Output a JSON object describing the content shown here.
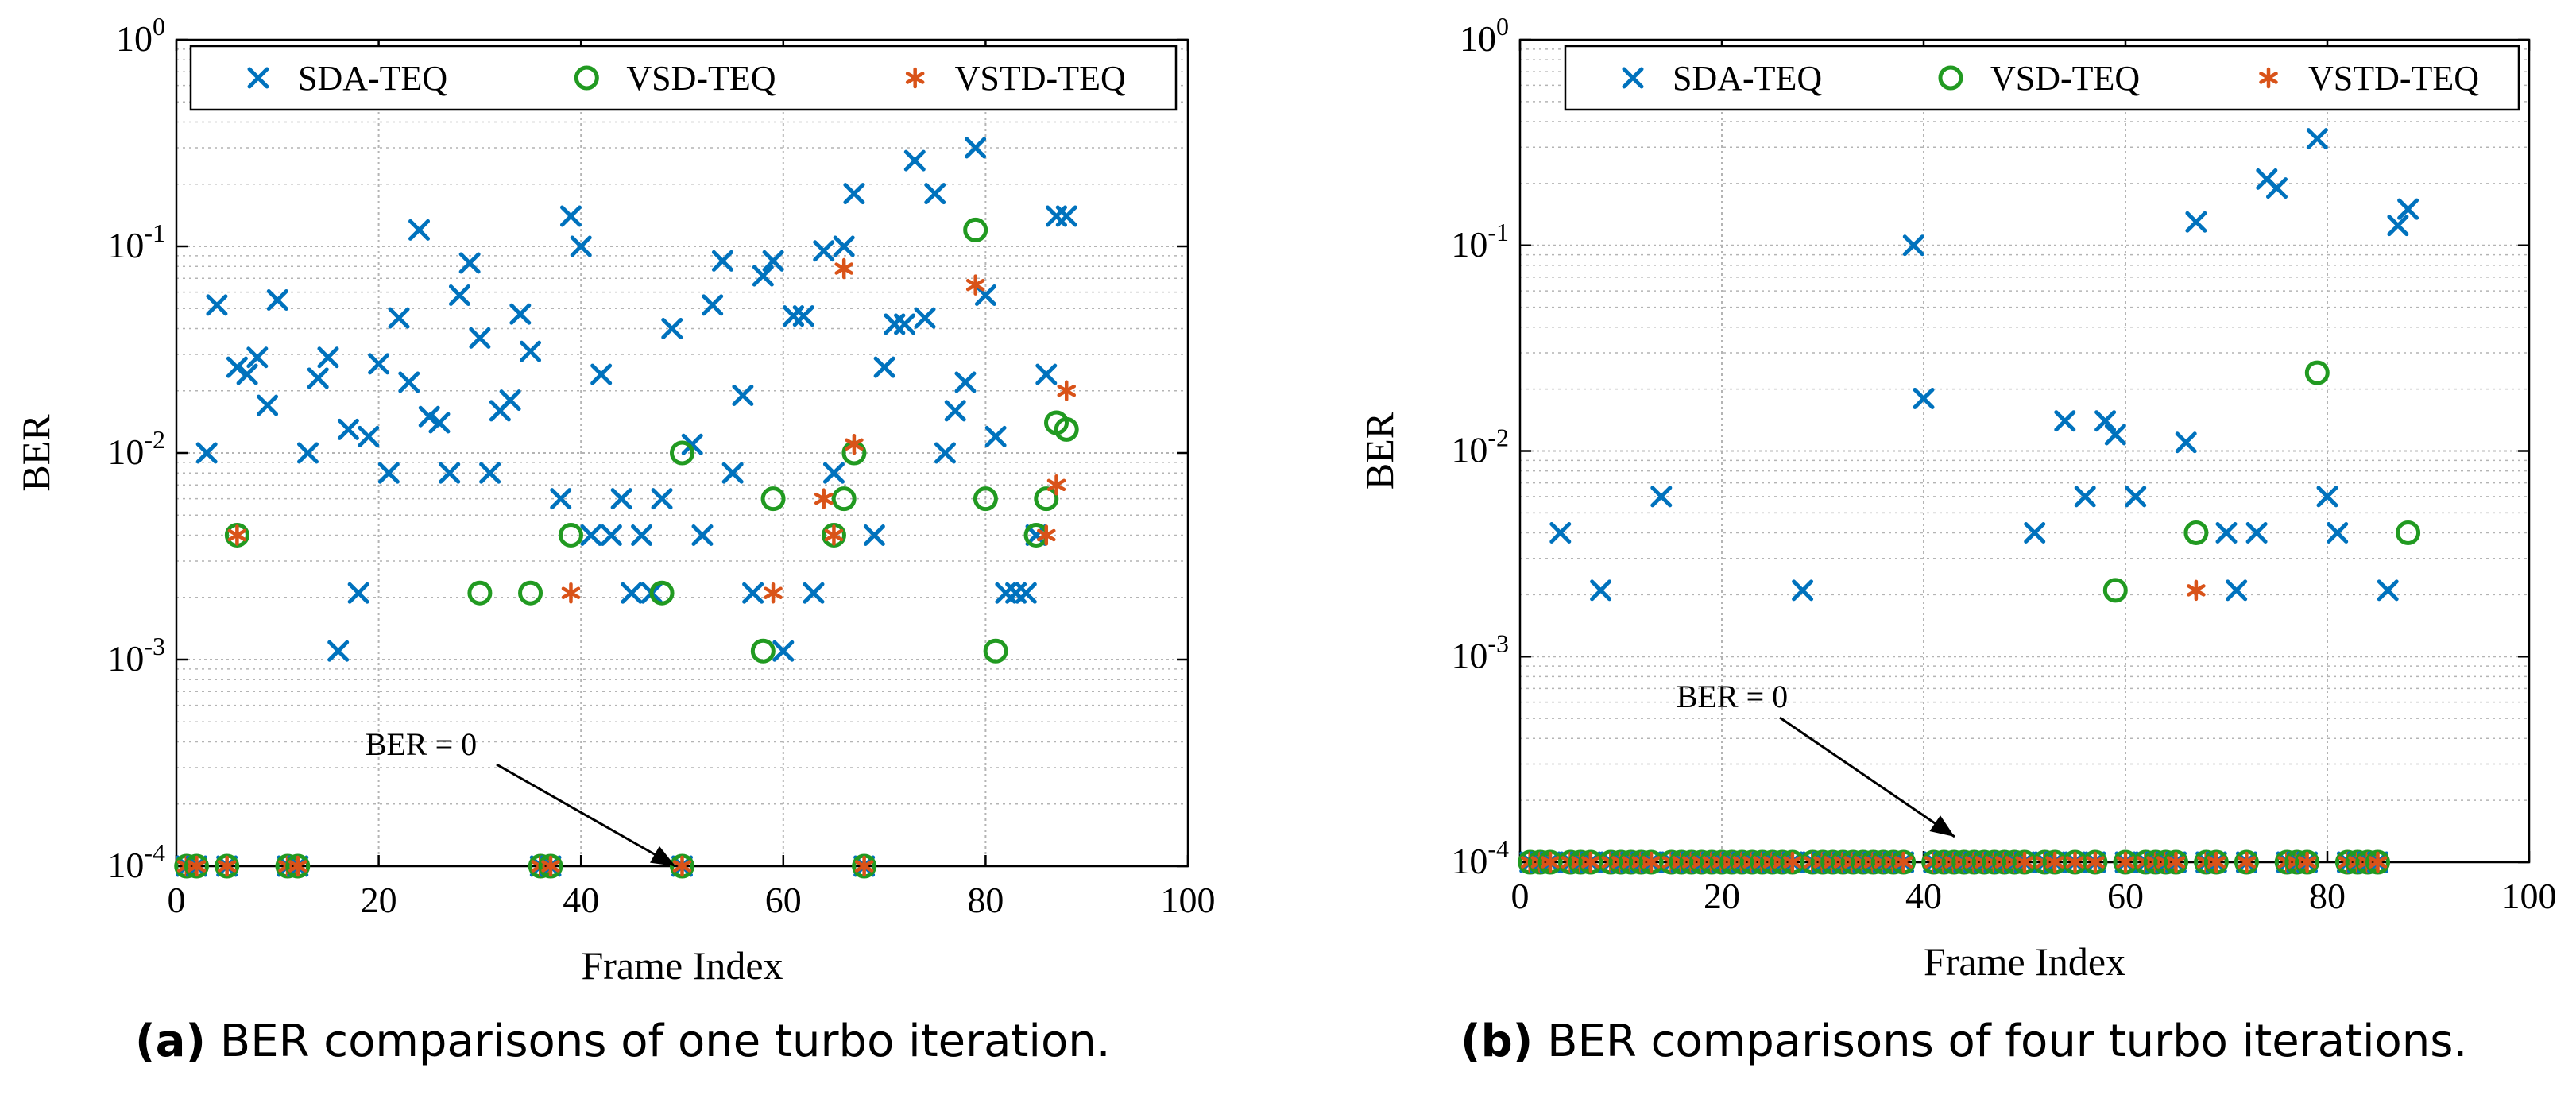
{
  "colors": {
    "sda": "#0072BD",
    "vsd": "#219A21",
    "vstd": "#D95319",
    "grid": "#b4b4b4"
  },
  "chart_data": [
    {
      "type": "scatter",
      "panel_label": "(a)",
      "caption": "BER comparisons of one turbo iteration.",
      "xlabel": "Frame Index",
      "ylabel": "BER",
      "xlim": [
        0,
        100
      ],
      "ylim": [
        0.0001,
        1
      ],
      "yscale": "log",
      "xticks": [
        "0",
        "20",
        "40",
        "60",
        "80",
        "100"
      ],
      "yticks": [
        {
          "base": "10",
          "exp": "-4"
        },
        {
          "base": "10",
          "exp": "-3"
        },
        {
          "base": "10",
          "exp": "-2"
        },
        {
          "base": "10",
          "exp": "-1"
        },
        {
          "base": "10",
          "exp": "0"
        }
      ],
      "grid": true,
      "legend": "top",
      "annotation": {
        "text": "BER = 0",
        "point_to": [
          50,
          0.0001
        ]
      },
      "series": [
        {
          "name": "SDA-TEQ",
          "marker": "x",
          "x": [
            3,
            4,
            6,
            7,
            8,
            9,
            10,
            13,
            14,
            15,
            16,
            17,
            18,
            19,
            20,
            21,
            22,
            23,
            24,
            25,
            26,
            27,
            28,
            29,
            30,
            31,
            32,
            33,
            34,
            35,
            38,
            39,
            40,
            41,
            42,
            43,
            44,
            45,
            46,
            47,
            48,
            49,
            51,
            52,
            53,
            54,
            55,
            56,
            57,
            58,
            59,
            60,
            61,
            62,
            63,
            64,
            65,
            66,
            67,
            69,
            70,
            71,
            72,
            73,
            74,
            75,
            76,
            77,
            78,
            79,
            80,
            81,
            82,
            83,
            84,
            85,
            86,
            87,
            88
          ],
          "y": [
            0.01,
            0.052,
            0.026,
            0.024,
            0.029,
            0.017,
            0.055,
            0.01,
            0.023,
            0.029,
            0.0011,
            0.013,
            0.0021,
            0.012,
            0.027,
            0.008,
            0.045,
            0.022,
            0.12,
            0.015,
            0.014,
            0.008,
            0.058,
            0.083,
            0.036,
            0.008,
            0.016,
            0.018,
            0.047,
            0.031,
            0.006,
            0.14,
            0.1,
            0.004,
            0.024,
            0.004,
            0.006,
            0.0021,
            0.004,
            0.0021,
            0.006,
            0.04,
            0.011,
            0.004,
            0.052,
            0.085,
            0.008,
            0.019,
            0.0021,
            0.072,
            0.085,
            0.0011,
            0.046,
            0.046,
            0.0021,
            0.095,
            0.008,
            0.1,
            0.18,
            0.004,
            0.026,
            0.042,
            0.042,
            0.26,
            0.045,
            0.18,
            0.01,
            0.016,
            0.022,
            0.3,
            0.058,
            0.012,
            0.0021,
            0.0021,
            0.0021,
            0.004,
            0.024,
            0.14,
            0.14
          ]
        },
        {
          "name": "VSD-TEQ",
          "marker": "o",
          "x": [
            6,
            30,
            35,
            39,
            48,
            50,
            58,
            59,
            65,
            66,
            67,
            79,
            80,
            81,
            85,
            86,
            87,
            88
          ],
          "y": [
            0.004,
            0.0021,
            0.0021,
            0.004,
            0.0021,
            0.01,
            0.0011,
            0.006,
            0.004,
            0.006,
            0.01,
            0.12,
            0.006,
            0.0011,
            0.004,
            0.006,
            0.014,
            0.013
          ]
        },
        {
          "name": "VSTD-TEQ",
          "marker": "*",
          "x": [
            6,
            39,
            59,
            64,
            65,
            66,
            67,
            79,
            86,
            87,
            88
          ],
          "y": [
            0.004,
            0.0021,
            0.0021,
            0.006,
            0.004,
            0.078,
            0.011,
            0.065,
            0.004,
            0.007,
            0.02
          ]
        }
      ]
    },
    {
      "type": "scatter",
      "panel_label": "(b)",
      "caption": "BER comparisons of four turbo iterations.",
      "xlabel": "Frame Index",
      "ylabel": "BER",
      "xlim": [
        0,
        100
      ],
      "ylim": [
        0.0001,
        1
      ],
      "yscale": "log",
      "xticks": [
        "0",
        "20",
        "40",
        "60",
        "80",
        "100"
      ],
      "yticks": [
        {
          "base": "10",
          "exp": "-4"
        },
        {
          "base": "10",
          "exp": "-3"
        },
        {
          "base": "10",
          "exp": "-2"
        },
        {
          "base": "10",
          "exp": "-1"
        },
        {
          "base": "10",
          "exp": "0"
        }
      ],
      "grid": true,
      "legend": "top",
      "annotation": {
        "text": "BER = 0",
        "point_to": [
          43,
          0.0001
        ]
      },
      "series": [
        {
          "name": "SDA-TEQ",
          "marker": "x",
          "x": [
            4,
            8,
            14,
            28,
            39,
            40,
            51,
            54,
            56,
            58,
            59,
            61,
            66,
            67,
            70,
            71,
            73,
            74,
            75,
            79,
            80,
            81,
            86,
            87,
            88
          ],
          "y": [
            0.004,
            0.0021,
            0.006,
            0.0021,
            0.1,
            0.018,
            0.004,
            0.014,
            0.006,
            0.014,
            0.012,
            0.006,
            0.011,
            0.13,
            0.004,
            0.0021,
            0.004,
            0.21,
            0.19,
            0.33,
            0.006,
            0.004,
            0.0021,
            0.125,
            0.15
          ]
        },
        {
          "name": "VSD-TEQ",
          "marker": "o",
          "x": [
            59,
            67,
            79,
            88
          ],
          "y": [
            0.0021,
            0.004,
            0.024,
            0.004
          ]
        },
        {
          "name": "VSTD-TEQ",
          "marker": "*",
          "x": [
            67
          ],
          "y": [
            0.0021
          ]
        }
      ]
    }
  ]
}
